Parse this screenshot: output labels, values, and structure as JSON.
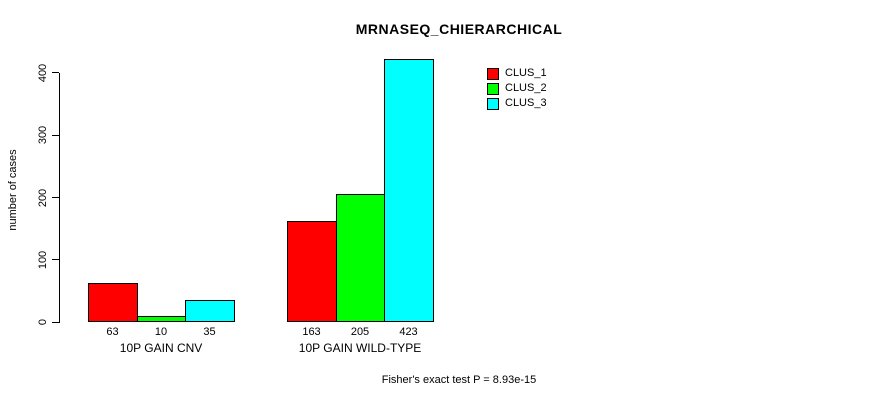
{
  "chart_data": {
    "type": "bar",
    "title": "MRNASEQ_CHIERARCHICAL",
    "ylabel": "number of cases",
    "xlabel": "",
    "categories": [
      "10P GAIN CNV",
      "10P GAIN WILD-TYPE"
    ],
    "series": [
      {
        "name": "CLUS_1",
        "color": "#ff0000",
        "values": [
          63,
          163
        ]
      },
      {
        "name": "CLUS_2",
        "color": "#00ff00",
        "values": [
          10,
          205
        ]
      },
      {
        "name": "CLUS_3",
        "color": "#00ffff",
        "values": [
          35,
          423
        ]
      }
    ],
    "yticks": [
      0,
      100,
      200,
      300,
      400
    ],
    "ylim": [
      0,
      423
    ],
    "grid": false,
    "legend_position": "top-right-inside",
    "bar_value_labels_shown": true,
    "annotation": "Fisher's exact test P = 8.93e-15"
  },
  "colors": {
    "background": "#ffffff",
    "axis": "#000000",
    "text": "#000000"
  }
}
